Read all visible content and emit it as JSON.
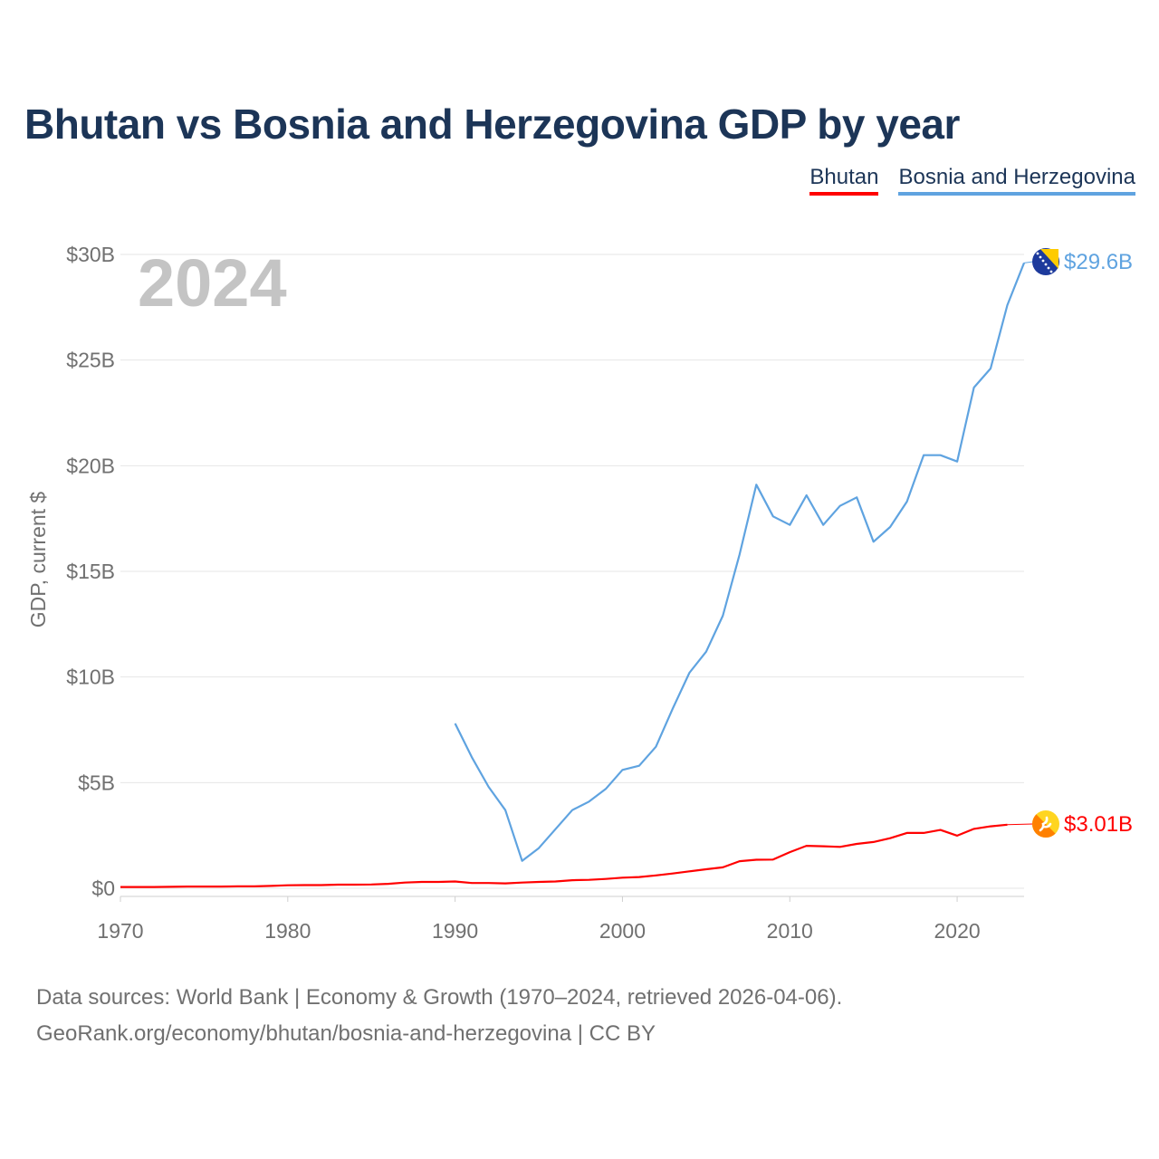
{
  "title": "Bhutan vs Bosnia and Herzegovina GDP by year",
  "legend": [
    {
      "label": "Bhutan",
      "color": "#ff0000"
    },
    {
      "label": "Bosnia and Herzegovina",
      "color": "#5fa3e0"
    }
  ],
  "year_overlay": "2024",
  "footer": {
    "line1": "Data sources: World Bank | Economy & Growth (1970–2024, retrieved 2026-04-06).",
    "line2": "GeoRank.org/economy/bhutan/bosnia-and-herzegovina | CC BY"
  },
  "chart_data": {
    "type": "line",
    "title": "Bhutan vs Bosnia and Herzegovina GDP by year",
    "xlabel": "",
    "ylabel": "GDP, current $",
    "xlim": [
      1970,
      2024
    ],
    "ylim": [
      0,
      30
    ],
    "x_ticks": [
      1970,
      1980,
      1990,
      2000,
      2010,
      2020
    ],
    "x_tick_labels": [
      "1970",
      "1980",
      "1990",
      "2000",
      "2010",
      "2020"
    ],
    "y_ticks": [
      0,
      5,
      10,
      15,
      20,
      25,
      30
    ],
    "y_tick_labels": [
      "$0",
      "$5B",
      "$10B",
      "$15B",
      "$20B",
      "$25B",
      "$30B"
    ],
    "grid": true,
    "legend_position": "top-right",
    "units": "billions of current US$",
    "series": [
      {
        "name": "Bhutan",
        "color": "#ff0000",
        "end_label": "$3.01B",
        "flag": "bhutan",
        "x": [
          1970,
          1971,
          1972,
          1973,
          1974,
          1975,
          1976,
          1977,
          1978,
          1979,
          1980,
          1981,
          1982,
          1983,
          1984,
          1985,
          1986,
          1987,
          1988,
          1989,
          1990,
          1991,
          1992,
          1993,
          1994,
          1995,
          1996,
          1997,
          1998,
          1999,
          2000,
          2001,
          2002,
          2003,
          2004,
          2005,
          2006,
          2007,
          2008,
          2009,
          2010,
          2011,
          2012,
          2013,
          2014,
          2015,
          2016,
          2017,
          2018,
          2019,
          2020,
          2021,
          2022,
          2023
        ],
        "values": [
          0.06,
          0.06,
          0.06,
          0.07,
          0.08,
          0.08,
          0.08,
          0.09,
          0.09,
          0.11,
          0.14,
          0.15,
          0.15,
          0.17,
          0.17,
          0.18,
          0.21,
          0.27,
          0.3,
          0.3,
          0.32,
          0.25,
          0.25,
          0.23,
          0.27,
          0.3,
          0.32,
          0.38,
          0.4,
          0.44,
          0.5,
          0.53,
          0.61,
          0.7,
          0.8,
          0.9,
          0.99,
          1.28,
          1.35,
          1.36,
          1.71,
          2.01,
          1.99,
          1.96,
          2.1,
          2.19,
          2.37,
          2.62,
          2.62,
          2.76,
          2.49,
          2.81,
          2.93,
          3.01
        ]
      },
      {
        "name": "Bosnia and Herzegovina",
        "color": "#5fa3e0",
        "end_label": "$29.6B",
        "flag": "bosnia-and-herzegovina",
        "x": [
          1990,
          1991,
          1992,
          1993,
          1994,
          1995,
          1996,
          1997,
          1998,
          1999,
          2000,
          2001,
          2002,
          2003,
          2004,
          2005,
          2006,
          2007,
          2008,
          2009,
          2010,
          2011,
          2012,
          2013,
          2014,
          2015,
          2016,
          2017,
          2018,
          2019,
          2020,
          2021,
          2022,
          2023,
          2024
        ],
        "values": [
          7.8,
          6.2,
          4.8,
          3.7,
          1.3,
          1.9,
          2.8,
          3.7,
          4.1,
          4.7,
          5.6,
          5.8,
          6.7,
          8.5,
          10.2,
          11.2,
          12.9,
          15.8,
          19.1,
          17.6,
          17.2,
          18.6,
          17.2,
          18.1,
          18.5,
          16.4,
          17.1,
          18.3,
          20.5,
          20.5,
          20.2,
          23.7,
          24.6,
          27.6,
          29.6
        ]
      }
    ]
  }
}
